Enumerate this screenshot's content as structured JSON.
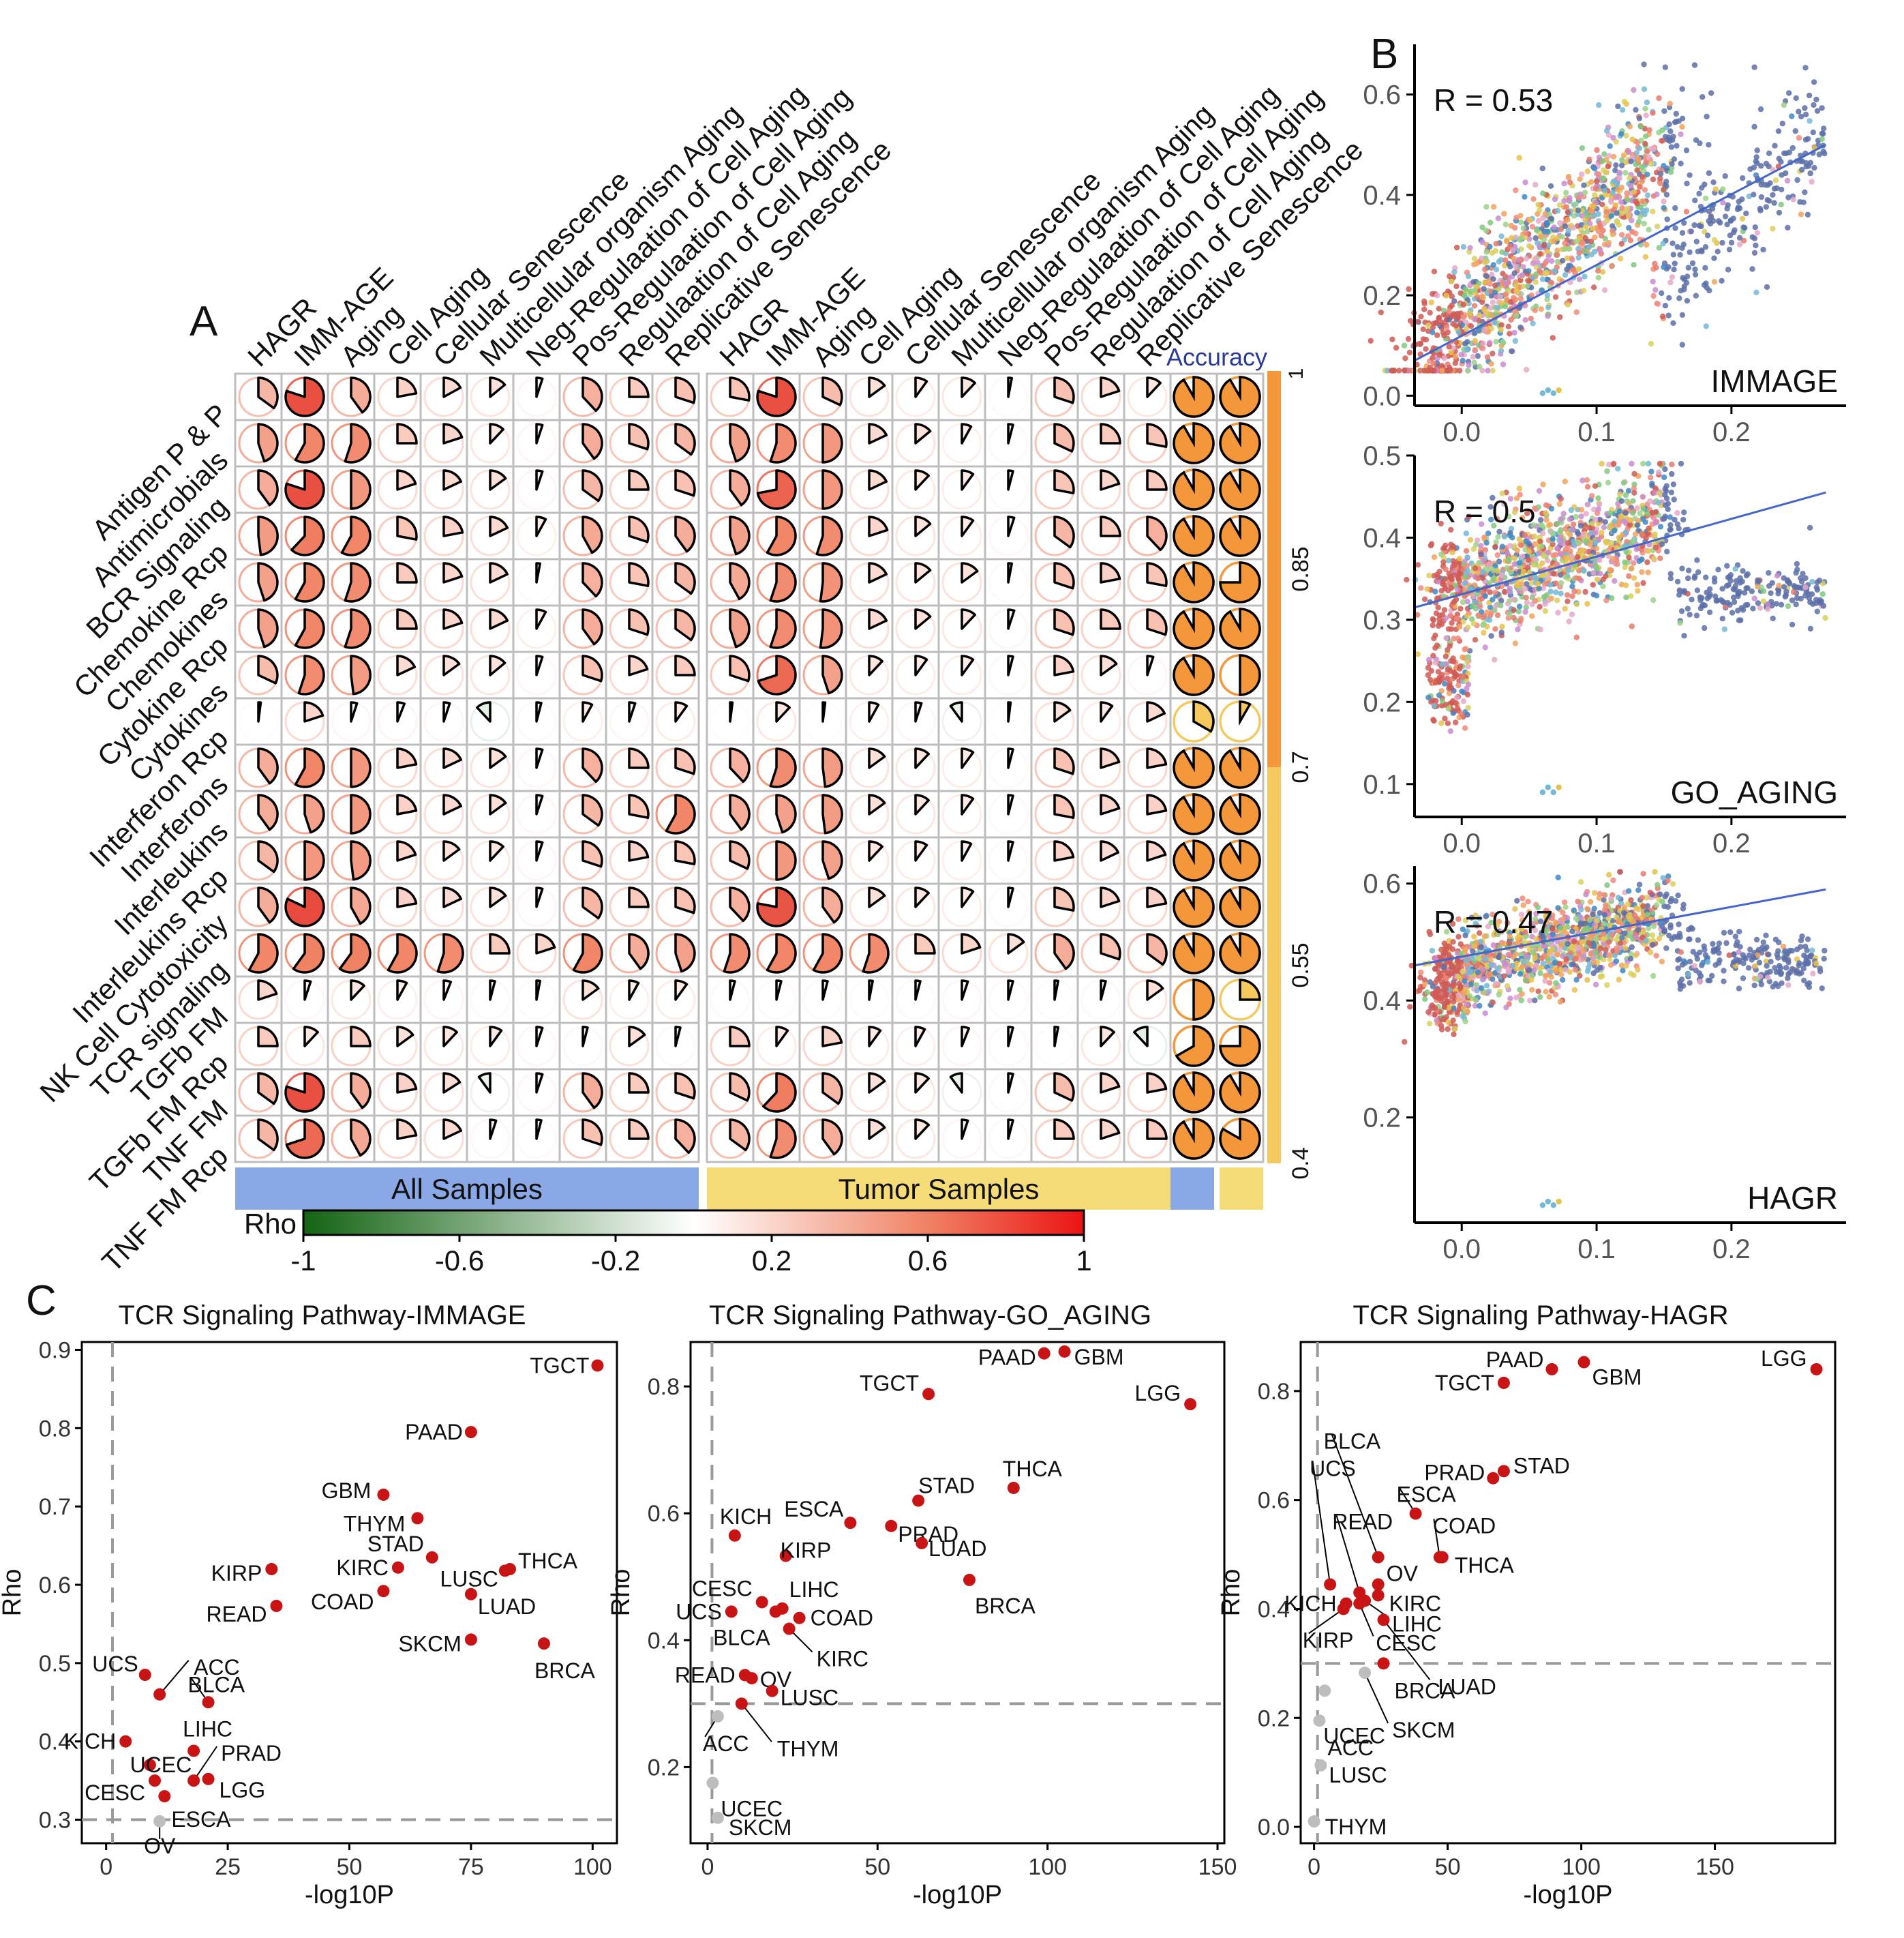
{
  "panel_labels": {
    "a": "A",
    "b": "B",
    "c": "C"
  },
  "colors": {
    "all_samples_bar": "#8aa8e6",
    "tumor_samples_bar": "#f5dc78",
    "accuracy_orange": "#f4963a",
    "accuracy_yellow": "#f6c95e",
    "pie_fill": "#f5a48c",
    "point_red": "#c81414",
    "point_grey": "#bdbdbd",
    "fit_line": "#4466cc"
  },
  "heatmap": {
    "rows": [
      "Antigen P & P",
      "Antimicrobials",
      "BCR Signaling",
      "Chemokine Rcp",
      "Chemokines",
      "Cytokine Rcp",
      "Cytokines",
      "Interferon Rcp",
      "Interferons",
      "Interleukins",
      "Interleukins Rcp",
      "NK Cell Cytotoxicity",
      "TCR signaling",
      "TGFb FM",
      "TGFb FM Rcp",
      "TNF FM",
      "TNF FM Rcp"
    ],
    "columns": [
      "HAGR",
      "IMM-AGE",
      "Aging",
      "Cell Aging",
      "Cellular Senescence",
      "Multicellular organism Aging",
      "Neg-Regulaation of Cell Aging",
      "Pos-Regulaation of Cell Aging",
      "Regulaation of Cell Aging",
      "Replicative Senescence"
    ],
    "group_labels": [
      "All Samples",
      "Tumor Samples"
    ],
    "accuracy_label": "Accuracy",
    "accuracy_ticks": [
      "0.4",
      "0.55",
      "0.7",
      "0.85"
    ],
    "accuracy_top_tick": "1",
    "rho_label": "Rho",
    "rho_ticks": [
      "-1",
      "-0.6",
      "-0.2",
      "0.2",
      "0.6",
      "1"
    ],
    "all_samples_rho": [
      [
        0.35,
        0.8,
        0.4,
        0.22,
        0.17,
        0.14,
        0.05,
        0.38,
        0.25,
        0.3
      ],
      [
        0.45,
        0.58,
        0.55,
        0.25,
        0.2,
        0.12,
        0.05,
        0.4,
        0.3,
        0.35
      ],
      [
        0.4,
        0.8,
        0.5,
        0.2,
        0.18,
        0.15,
        0.05,
        0.35,
        0.25,
        0.3
      ],
      [
        0.48,
        0.62,
        0.58,
        0.28,
        0.22,
        0.18,
        0.08,
        0.42,
        0.3,
        0.4
      ],
      [
        0.45,
        0.58,
        0.55,
        0.25,
        0.2,
        0.18,
        0.03,
        0.38,
        0.28,
        0.35
      ],
      [
        0.45,
        0.58,
        0.55,
        0.25,
        0.2,
        0.18,
        0.08,
        0.4,
        0.3,
        0.35
      ],
      [
        0.32,
        0.55,
        0.48,
        0.18,
        0.15,
        0.14,
        0.05,
        0.3,
        0.2,
        0.25
      ],
      [
        0.02,
        0.2,
        0.05,
        0.06,
        0.05,
        -0.12,
        0.04,
        0.08,
        0.05,
        0.1
      ],
      [
        0.4,
        0.58,
        0.5,
        0.22,
        0.18,
        0.15,
        0.05,
        0.38,
        0.25,
        0.3
      ],
      [
        0.4,
        0.45,
        0.5,
        0.22,
        0.18,
        0.15,
        0.05,
        0.35,
        0.28,
        0.58
      ],
      [
        0.35,
        0.5,
        0.48,
        0.2,
        0.15,
        0.12,
        0.05,
        0.3,
        0.22,
        0.28
      ],
      [
        0.4,
        0.82,
        0.42,
        0.22,
        0.18,
        0.15,
        0.05,
        0.35,
        0.25,
        0.3
      ],
      [
        0.58,
        0.6,
        0.6,
        0.58,
        0.55,
        0.25,
        0.2,
        0.58,
        0.4,
        0.45
      ],
      [
        0.2,
        0.05,
        0.12,
        0.08,
        0.06,
        0.04,
        0.03,
        0.15,
        0.08,
        0.1
      ],
      [
        0.25,
        0.12,
        0.25,
        0.15,
        0.12,
        0.1,
        0.05,
        0.04,
        0.15,
        0.04
      ],
      [
        0.35,
        0.8,
        0.4,
        0.22,
        0.16,
        -0.1,
        0.05,
        0.4,
        0.25,
        0.3
      ],
      [
        0.35,
        0.7,
        0.42,
        0.22,
        0.18,
        0.05,
        0.04,
        0.3,
        0.25,
        0.38
      ]
    ],
    "tumor_samples_rho": [
      [
        0.28,
        0.8,
        0.32,
        0.15,
        0.1,
        0.12,
        0.03,
        0.3,
        0.2,
        0.12
      ],
      [
        0.45,
        0.55,
        0.5,
        0.18,
        0.14,
        0.08,
        0.04,
        0.32,
        0.25,
        0.28
      ],
      [
        0.4,
        0.72,
        0.5,
        0.18,
        0.12,
        0.1,
        0.04,
        0.28,
        0.2,
        0.25
      ],
      [
        0.45,
        0.58,
        0.55,
        0.2,
        0.14,
        0.1,
        0.05,
        0.35,
        0.25,
        0.38
      ],
      [
        0.42,
        0.55,
        0.52,
        0.18,
        0.14,
        0.15,
        0.03,
        0.3,
        0.22,
        0.28
      ],
      [
        0.45,
        0.55,
        0.52,
        0.18,
        0.14,
        0.12,
        0.05,
        0.3,
        0.25,
        0.3
      ],
      [
        0.3,
        0.7,
        0.45,
        0.12,
        0.1,
        0.1,
        0.04,
        0.22,
        0.15,
        0.05
      ],
      [
        0.02,
        0.12,
        0.02,
        0.08,
        0.05,
        -0.1,
        0.02,
        0.15,
        0.1,
        0.18
      ],
      [
        0.38,
        0.55,
        0.48,
        0.15,
        0.12,
        0.1,
        0.04,
        0.3,
        0.2,
        0.22
      ],
      [
        0.4,
        0.45,
        0.48,
        0.15,
        0.12,
        0.1,
        0.04,
        0.28,
        0.2,
        0.22
      ],
      [
        0.32,
        0.5,
        0.45,
        0.12,
        0.1,
        0.08,
        0.04,
        0.22,
        0.18,
        0.2
      ],
      [
        0.38,
        0.78,
        0.4,
        0.15,
        0.12,
        0.1,
        0.04,
        0.28,
        0.2,
        0.22
      ],
      [
        0.55,
        0.58,
        0.58,
        0.55,
        0.25,
        0.2,
        0.15,
        0.4,
        0.3,
        0.35
      ],
      [
        0.04,
        0.04,
        0.04,
        0.03,
        0.04,
        0.05,
        0.04,
        0.03,
        0.04,
        0.15
      ],
      [
        0.25,
        0.1,
        0.22,
        0.1,
        0.08,
        0.06,
        0.04,
        0.03,
        0.12,
        -0.12
      ],
      [
        0.32,
        0.62,
        0.35,
        0.15,
        0.12,
        -0.1,
        0.04,
        0.32,
        0.2,
        0.22
      ],
      [
        0.35,
        0.55,
        0.4,
        0.15,
        0.12,
        0.05,
        0.04,
        0.25,
        0.2,
        0.25
      ]
    ],
    "accuracy": [
      [
        0.95,
        0.95
      ],
      [
        0.95,
        0.95
      ],
      [
        0.95,
        0.95
      ],
      [
        0.95,
        0.95
      ],
      [
        0.95,
        0.85
      ],
      [
        0.95,
        0.95
      ],
      [
        0.95,
        0.7
      ],
      [
        0.6,
        0.45
      ],
      [
        0.95,
        0.95
      ],
      [
        0.95,
        0.95
      ],
      [
        0.95,
        0.95
      ],
      [
        0.95,
        0.95
      ],
      [
        0.95,
        0.95
      ],
      [
        0.7,
        0.55
      ],
      [
        0.8,
        0.85
      ],
      [
        0.95,
        0.95
      ],
      [
        0.95,
        0.9
      ]
    ]
  },
  "chart_data": [
    {
      "type": "scatter",
      "panel": "B",
      "corner_label": "IMMAGE",
      "r_text": "R = 0.53",
      "xlim": [
        -0.035,
        0.285
      ],
      "ylim": [
        -0.02,
        0.7
      ],
      "xticks": [
        "0.0",
        "0.1",
        "0.2"
      ],
      "yticks": [
        "0.0",
        "0.2",
        "0.4",
        "0.6"
      ],
      "fit_line": {
        "x": [
          -0.035,
          0.27
        ],
        "y": [
          0.07,
          0.5
        ]
      }
    },
    {
      "type": "scatter",
      "panel": "B",
      "corner_label": "GO_AGING",
      "r_text": "R = 0.5",
      "xlim": [
        -0.035,
        0.285
      ],
      "ylim": [
        0.06,
        0.5
      ],
      "xticks": [
        "0.0",
        "0.1",
        "0.2"
      ],
      "yticks": [
        "0.1",
        "0.2",
        "0.3",
        "0.4",
        "0.5"
      ],
      "fit_line": {
        "x": [
          -0.035,
          0.27
        ],
        "y": [
          0.315,
          0.455
        ]
      }
    },
    {
      "type": "scatter",
      "panel": "B",
      "corner_label": "HAGR",
      "r_text": "R = 0.47",
      "xlim": [
        -0.035,
        0.285
      ],
      "ylim": [
        0.02,
        0.63
      ],
      "xticks": [
        "0.0",
        "0.1",
        "0.2"
      ],
      "yticks": [
        "0.2",
        "0.4",
        "0.6"
      ],
      "fit_line": {
        "x": [
          -0.035,
          0.27
        ],
        "y": [
          0.46,
          0.59
        ]
      }
    },
    {
      "type": "scatter",
      "panel": "C",
      "title": "TCR Signaling Pathway-IMMAGE",
      "xlabel": "-log10P",
      "ylabel": "Rho",
      "xlim": [
        -5,
        105
      ],
      "ylim": [
        0.27,
        0.91
      ],
      "xticks": [
        0,
        25,
        50,
        75,
        100
      ],
      "yticks": [
        0.3,
        0.4,
        0.5,
        0.6,
        0.7,
        0.8,
        0.9
      ],
      "ytick_labels": [
        "0.3",
        "0.4",
        "0.5",
        "0.6",
        "0.7",
        "0.8",
        "0.9"
      ],
      "vline": 1.3,
      "hline": 0.3,
      "points": [
        {
          "label": "TGCT",
          "x": 101,
          "y": 0.88
        },
        {
          "label": "PAAD",
          "x": 75,
          "y": 0.795
        },
        {
          "label": "GBM",
          "x": 57,
          "y": 0.715
        },
        {
          "label": "THYM",
          "x": 64,
          "y": 0.685
        },
        {
          "label": "STAD",
          "x": 67,
          "y": 0.635
        },
        {
          "label": "KIRC",
          "x": 60,
          "y": 0.622
        },
        {
          "label": "LUSC",
          "x": 82,
          "y": 0.618
        },
        {
          "label": "THCA",
          "x": 83,
          "y": 0.62
        },
        {
          "label": "COAD",
          "x": 57,
          "y": 0.592
        },
        {
          "label": "LUAD",
          "x": 75,
          "y": 0.588
        },
        {
          "label": "SKCM",
          "x": 75,
          "y": 0.53
        },
        {
          "label": "BRCA",
          "x": 90,
          "y": 0.525
        },
        {
          "label": "KIRP",
          "x": 34,
          "y": 0.62
        },
        {
          "label": "READ",
          "x": 35,
          "y": 0.573
        },
        {
          "label": "UCS",
          "x": 8,
          "y": 0.485
        },
        {
          "label": "ACC",
          "x": 11,
          "y": 0.46
        },
        {
          "label": "BLCA",
          "x": 21,
          "y": 0.45
        },
        {
          "label": "KICH",
          "x": 4,
          "y": 0.4
        },
        {
          "label": "LIHC",
          "x": 18,
          "y": 0.388
        },
        {
          "label": "UCEC",
          "x": 9,
          "y": 0.37
        },
        {
          "label": "PRAD",
          "x": 18,
          "y": 0.35
        },
        {
          "label": "LGG",
          "x": 21,
          "y": 0.352
        },
        {
          "label": "CESC",
          "x": 10,
          "y": 0.35
        },
        {
          "label": "ESCA",
          "x": 12,
          "y": 0.33
        },
        {
          "label": "OV",
          "x": 11,
          "y": 0.298,
          "grey": true
        }
      ]
    },
    {
      "type": "scatter",
      "panel": "C",
      "title": "TCR Signaling Pathway-GO_AGING",
      "xlabel": "-log10P",
      "ylabel": "Rho",
      "xlim": [
        -5,
        152
      ],
      "ylim": [
        0.08,
        0.87
      ],
      "xticks": [
        0,
        50,
        100,
        150
      ],
      "yticks": [
        0.2,
        0.4,
        0.6,
        0.8
      ],
      "ytick_labels": [
        "0.2",
        "0.4",
        "0.6",
        "0.8"
      ],
      "vline": 1.3,
      "hline": 0.3,
      "points": [
        {
          "label": "PAAD",
          "x": 99,
          "y": 0.852
        },
        {
          "label": "GBM",
          "x": 105,
          "y": 0.855
        },
        {
          "label": "TGCT",
          "x": 65,
          "y": 0.788
        },
        {
          "label": "LGG",
          "x": 142,
          "y": 0.772
        },
        {
          "label": "THCA",
          "x": 90,
          "y": 0.64
        },
        {
          "label": "STAD",
          "x": 62,
          "y": 0.62
        },
        {
          "label": "ESCA",
          "x": 42,
          "y": 0.585
        },
        {
          "label": "PRAD",
          "x": 54,
          "y": 0.58
        },
        {
          "label": "KICH",
          "x": 8,
          "y": 0.565
        },
        {
          "label": "LUAD",
          "x": 63,
          "y": 0.553
        },
        {
          "label": "KIRP",
          "x": 23,
          "y": 0.533
        },
        {
          "label": "BRCA",
          "x": 77,
          "y": 0.495
        },
        {
          "label": "LIHC",
          "x": 22,
          "y": 0.45
        },
        {
          "label": "CESC",
          "x": 16,
          "y": 0.46
        },
        {
          "label": "UCS",
          "x": 7,
          "y": 0.445
        },
        {
          "label": "COAD",
          "x": 27,
          "y": 0.435
        },
        {
          "label": "BLCA",
          "x": 20,
          "y": 0.445
        },
        {
          "label": "KIRC",
          "x": 24,
          "y": 0.418
        },
        {
          "label": "READ",
          "x": 11,
          "y": 0.345
        },
        {
          "label": "OV",
          "x": 13,
          "y": 0.34
        },
        {
          "label": "LUSC",
          "x": 19,
          "y": 0.32
        },
        {
          "label": "THYM",
          "x": 10,
          "y": 0.3
        },
        {
          "label": "ACC",
          "x": 3,
          "y": 0.28,
          "grey": true
        },
        {
          "label": "UCEC",
          "x": 1.5,
          "y": 0.175,
          "grey": true
        },
        {
          "label": "SKCM",
          "x": 3,
          "y": 0.12,
          "grey": true
        }
      ]
    },
    {
      "type": "scatter",
      "panel": "C",
      "title": "TCR Signaling Pathway-HAGR",
      "xlabel": "-log10P",
      "ylabel": "Rho",
      "xlim": [
        -5,
        195
      ],
      "ylim": [
        -0.03,
        0.89
      ],
      "xticks": [
        0,
        50,
        100,
        150
      ],
      "yticks": [
        0.0,
        0.2,
        0.4,
        0.6,
        0.8
      ],
      "ytick_labels": [
        "0.0",
        "0.2",
        "0.4",
        "0.6",
        "0.8"
      ],
      "vline": 1.3,
      "hline": 0.3,
      "points": [
        {
          "label": "LGG",
          "x": 188,
          "y": 0.84
        },
        {
          "label": "PAAD",
          "x": 89,
          "y": 0.84
        },
        {
          "label": "GBM",
          "x": 101,
          "y": 0.853
        },
        {
          "label": "TGCT",
          "x": 71,
          "y": 0.815
        },
        {
          "label": "PRAD",
          "x": 67,
          "y": 0.64
        },
        {
          "label": "STAD",
          "x": 71,
          "y": 0.653
        },
        {
          "label": "ESCA",
          "x": 38,
          "y": 0.575
        },
        {
          "label": "COAD",
          "x": 47,
          "y": 0.495
        },
        {
          "label": "THCA",
          "x": 48,
          "y": 0.495
        },
        {
          "label": "BLCA",
          "x": 24,
          "y": 0.495
        },
        {
          "label": "UCS",
          "x": 6,
          "y": 0.445
        },
        {
          "label": "READ",
          "x": 17,
          "y": 0.43
        },
        {
          "label": "OV",
          "x": 24,
          "y": 0.445
        },
        {
          "label": "KIRC",
          "x": 24,
          "y": 0.425
        },
        {
          "label": "KICH",
          "x": 12,
          "y": 0.41
        },
        {
          "label": "LIHC",
          "x": 19,
          "y": 0.415
        },
        {
          "label": "KIRP",
          "x": 11,
          "y": 0.4
        },
        {
          "label": "CESC",
          "x": 17,
          "y": 0.41
        },
        {
          "label": "LUAD",
          "x": 26,
          "y": 0.38
        },
        {
          "label": "BRCA",
          "x": 26,
          "y": 0.3
        },
        {
          "label": "SKCM",
          "x": 19,
          "y": 0.283,
          "grey": true
        },
        {
          "label": "UCEC",
          "x": 4,
          "y": 0.25,
          "grey": true
        },
        {
          "label": "ACC",
          "x": 2,
          "y": 0.195,
          "grey": true
        },
        {
          "label": "LUSC",
          "x": 2.5,
          "y": 0.113,
          "grey": true
        },
        {
          "label": "THYM",
          "x": 0,
          "y": 0.01,
          "grey": true
        }
      ]
    }
  ]
}
